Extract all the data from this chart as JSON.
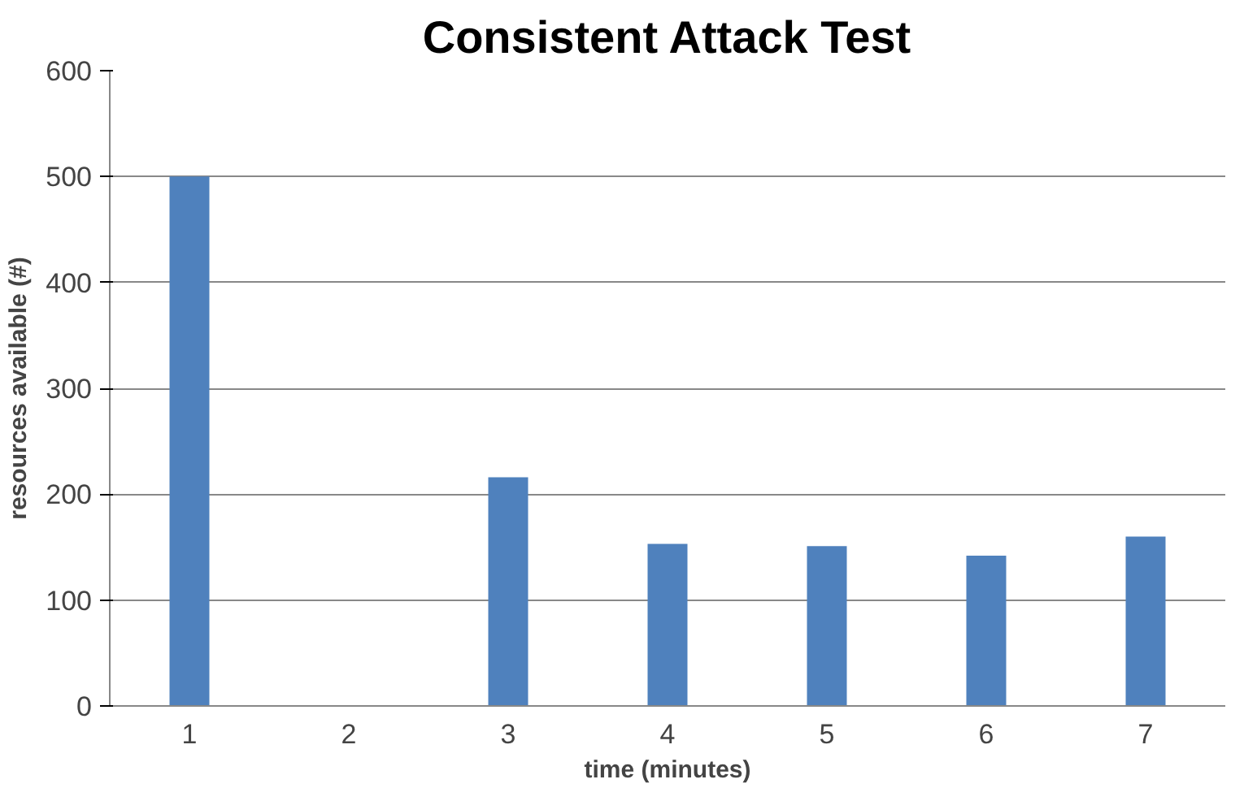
{
  "chart_data": {
    "type": "bar",
    "title": "Consistent Attack Test",
    "xlabel": "time (minutes)",
    "ylabel": "resources available (#)",
    "categories": [
      "1",
      "2",
      "3",
      "4",
      "5",
      "6",
      "7"
    ],
    "values": [
      500,
      0,
      216,
      153,
      151,
      142,
      160
    ],
    "color": "#4f81bd",
    "ylim": [
      0,
      600
    ],
    "yticks": [
      0,
      100,
      200,
      300,
      400,
      500,
      600
    ],
    "grid": "y"
  }
}
